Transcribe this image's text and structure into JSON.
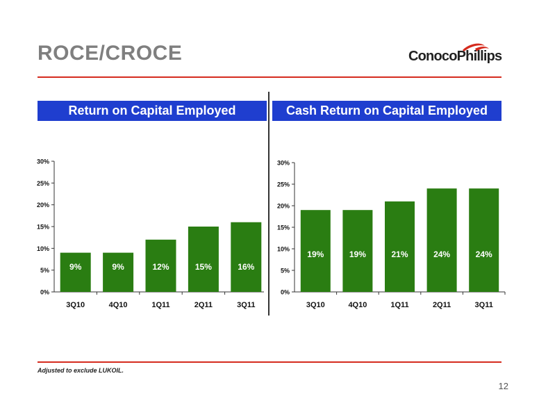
{
  "slide": {
    "title": "ROCE/CROCE",
    "footnote": "Adjusted to exclude LUKOIL.",
    "page_number": "12",
    "logo_text": "ConocoPhillips"
  },
  "colors": {
    "bar": "#2a7d12",
    "header_bg": "#1f3ecf",
    "rule": "#d52b1e",
    "title": "#7f7f7f"
  },
  "chart_data": [
    {
      "type": "bar",
      "title": "Return on Capital Employed",
      "categories": [
        "3Q10",
        "4Q10",
        "1Q11",
        "2Q11",
        "3Q11"
      ],
      "values": [
        9,
        9,
        12,
        15,
        16
      ],
      "data_labels": [
        "9%",
        "9%",
        "12%",
        "15%",
        "16%"
      ],
      "yticks": [
        "0%",
        "5%",
        "10%",
        "15%",
        "20%",
        "25%",
        "30%"
      ],
      "ylim": [
        0,
        30
      ],
      "xlabel": "",
      "ylabel": "",
      "grid": false,
      "legend": "none"
    },
    {
      "type": "bar",
      "title": "Cash Return on Capital Employed",
      "categories": [
        "3Q10",
        "4Q10",
        "1Q11",
        "2Q11",
        "3Q11"
      ],
      "values": [
        19,
        19,
        21,
        24,
        24
      ],
      "data_labels": [
        "19%",
        "19%",
        "21%",
        "24%",
        "24%"
      ],
      "yticks": [
        "0%",
        "5%",
        "10%",
        "15%",
        "20%",
        "25%",
        "30%"
      ],
      "ylim": [
        0,
        30
      ],
      "xlabel": "",
      "ylabel": "",
      "grid": false,
      "legend": "none"
    }
  ]
}
